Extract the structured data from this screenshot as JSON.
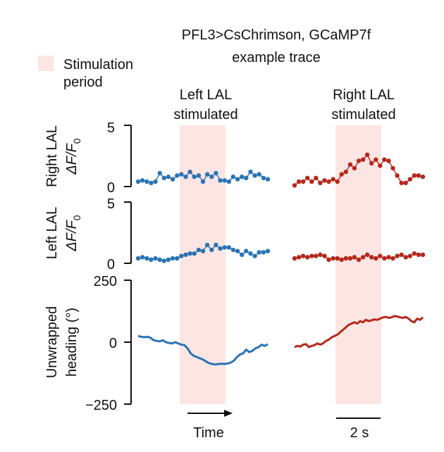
{
  "chart_data": {
    "type": "line",
    "title": "PFL3>CsChrimson, GCaMP7f",
    "subtitle": "example trace",
    "legend": {
      "label_line1": "Stimulation",
      "label_line2": "period",
      "color": "#fde5e3"
    },
    "columns": [
      {
        "title_line1": "Left LAL",
        "title_line2": "stimulated",
        "color": "#2a74b5"
      },
      {
        "title_line1": "Right LAL",
        "title_line2": "stimulated",
        "color": "#b5281b"
      }
    ],
    "rows": [
      {
        "ylabel_line1": "Right LAL",
        "ylabel_line2": "ΔF/F",
        "ylabel_sub": "0",
        "ylim": [
          0,
          5
        ],
        "ticks": [
          "5",
          "0"
        ]
      },
      {
        "ylabel_line1": "Left LAL",
        "ylabel_line2": "ΔF/F",
        "ylabel_sub": "0",
        "ylim": [
          0,
          5
        ],
        "ticks": [
          "5",
          "0"
        ]
      },
      {
        "ylabel_line1": "Unwrapped",
        "ylabel_line2": "heading (°)",
        "ylabel_sub": "",
        "ylim": [
          -250,
          250
        ],
        "ticks": [
          "250",
          "0",
          "−250"
        ]
      }
    ],
    "series": [
      {
        "name": "Left LAL stimulated — Right LAL ΔF/F0",
        "values": [
          0.4,
          0.5,
          0.4,
          0.3,
          0.4,
          1.1,
          0.7,
          0.8,
          0.6,
          0.9,
          1.0,
          0.8,
          1.2,
          0.8,
          0.9,
          0.4,
          1.0,
          0.8,
          1.1,
          0.5,
          0.5,
          0.4,
          0.8,
          0.6,
          0.8,
          0.7,
          1.2,
          0.9,
          1.0,
          0.7,
          0.6
        ]
      },
      {
        "name": "Right LAL stimulated — Right LAL ΔF/F0",
        "values": [
          0.1,
          0.4,
          0.4,
          0.7,
          0.4,
          0.7,
          0.3,
          0.5,
          0.4,
          0.6,
          0.4,
          1.0,
          1.2,
          1.8,
          1.5,
          2.1,
          2.2,
          2.6,
          1.9,
          2.2,
          1.7,
          2.2,
          2.1,
          1.5,
          0.9,
          0.3,
          0.3,
          0.6,
          0.9,
          0.9,
          0.8
        ]
      },
      {
        "name": "Left LAL stimulated — Left LAL ΔF/F0",
        "values": [
          0.4,
          0.5,
          0.4,
          0.3,
          0.4,
          0.3,
          0.2,
          0.3,
          0.4,
          0.4,
          0.6,
          0.7,
          0.8,
          0.8,
          1.1,
          1.0,
          1.5,
          1.1,
          1.5,
          1.2,
          1.3,
          1.3,
          1.1,
          1.0,
          0.7,
          1.0,
          0.8,
          0.6,
          0.9,
          0.9,
          1.0
        ]
      },
      {
        "name": "Right LAL stimulated — Left LAL ΔF/F0",
        "values": [
          0.4,
          0.5,
          0.6,
          0.5,
          0.6,
          0.6,
          0.7,
          0.6,
          0.3,
          0.4,
          0.4,
          0.3,
          0.4,
          0.4,
          0.5,
          0.3,
          0.5,
          0.7,
          0.5,
          0.4,
          0.6,
          0.4,
          0.5,
          0.4,
          0.6,
          0.7,
          0.5,
          0.6,
          0.8,
          0.7,
          0.7
        ]
      },
      {
        "name": "Left LAL stimulated — Unwrapped heading",
        "values": [
          25,
          22,
          20,
          22,
          18,
          8,
          5,
          3,
          8,
          0,
          -3,
          -5,
          0,
          -5,
          -10,
          -12,
          -25,
          -45,
          -55,
          -60,
          -65,
          -70,
          -78,
          -85,
          -88,
          -90,
          -88,
          -87,
          -88,
          -86,
          -82,
          -75,
          -60,
          -50,
          -45,
          -30,
          -40,
          -35,
          -25,
          -20,
          -10,
          -15,
          -8
        ]
      },
      {
        "name": "Right LAL stimulated — Unwrapped heading",
        "values": [
          -20,
          -15,
          -18,
          -10,
          -8,
          -20,
          -15,
          -12,
          -5,
          -10,
          -5,
          5,
          10,
          20,
          25,
          30,
          40,
          50,
          60,
          70,
          75,
          80,
          75,
          85,
          80,
          90,
          85,
          88,
          92,
          90,
          95,
          100,
          102,
          98,
          100,
          105,
          104,
          100,
          98,
          102,
          95,
          85,
          80,
          95,
          90,
          100
        ]
      }
    ],
    "stimulation_period_fraction": [
      0.35,
      0.67
    ],
    "time_label": "Time",
    "scale_bar_label": "2 s"
  }
}
